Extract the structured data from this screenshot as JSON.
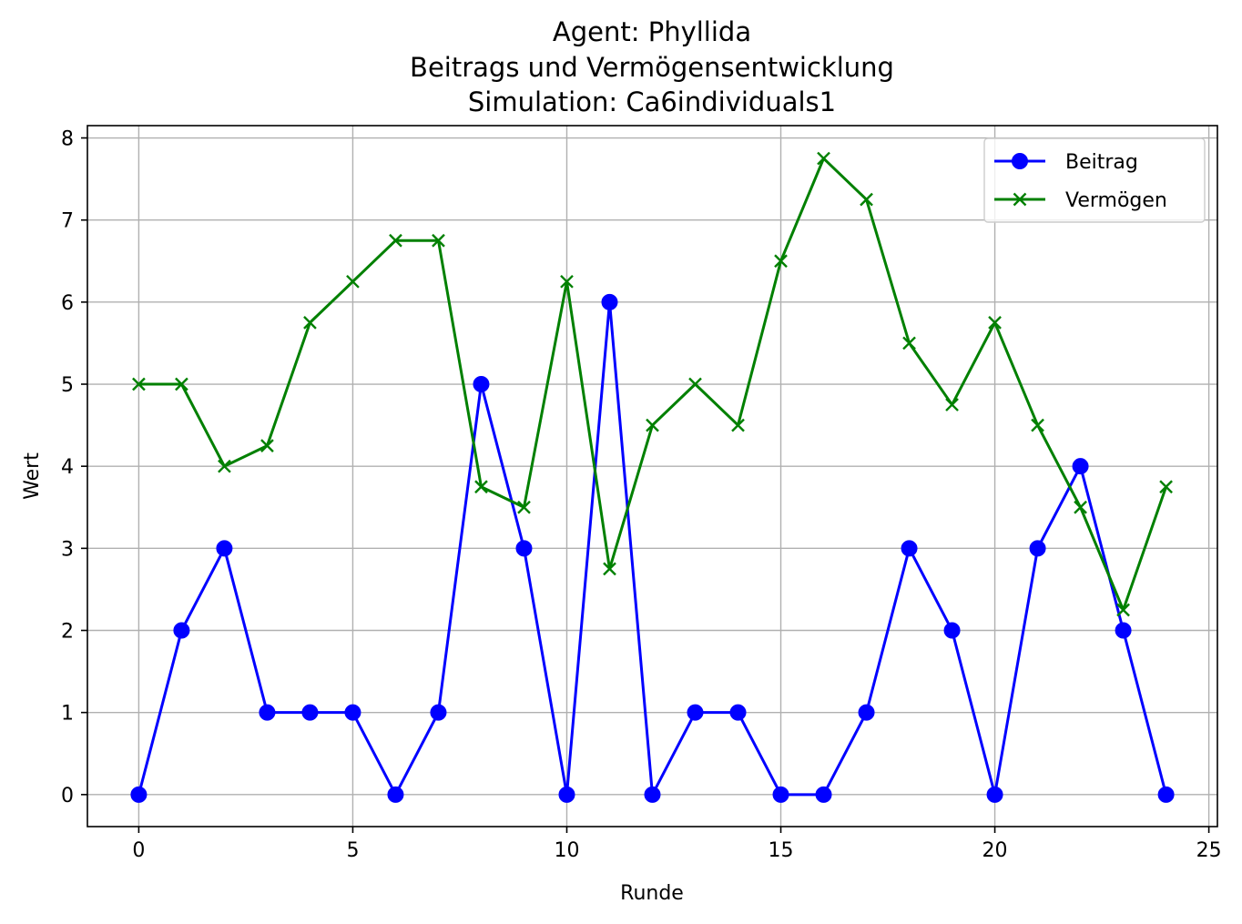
{
  "chart_data": {
    "type": "line",
    "title": [
      "Agent: Phyllida",
      "Beitrags und Vermögensentwicklung",
      "Simulation: Ca6individuals1"
    ],
    "xlabel": "Runde",
    "ylabel": "Wert",
    "xlim": [
      -1.2,
      25.2
    ],
    "ylim": [
      -0.39,
      8.15
    ],
    "xticks": [
      0,
      5,
      10,
      15,
      20,
      25
    ],
    "yticks": [
      0,
      1,
      2,
      3,
      4,
      5,
      6,
      7,
      8
    ],
    "grid": true,
    "legend_position": "top-right",
    "x": [
      0,
      1,
      2,
      3,
      4,
      5,
      6,
      7,
      8,
      9,
      10,
      11,
      12,
      13,
      14,
      15,
      16,
      17,
      18,
      19,
      20,
      21,
      22,
      23,
      24
    ],
    "series": [
      {
        "name": "Beitrag",
        "color": "#0000ff",
        "marker": "circle",
        "values": [
          0,
          2,
          3,
          1,
          1,
          1,
          0,
          1,
          5,
          3,
          0,
          6,
          0,
          1,
          1,
          0,
          0,
          1,
          3,
          2,
          0,
          3,
          4,
          2,
          0
        ]
      },
      {
        "name": "Vermögen",
        "color": "#008000",
        "marker": "x",
        "values": [
          5,
          5,
          4,
          4.25,
          5.75,
          6.25,
          6.75,
          6.75,
          3.75,
          3.5,
          6.25,
          2.75,
          4.5,
          5,
          4.5,
          6.5,
          7.75,
          7.25,
          5.5,
          4.75,
          5.75,
          4.5,
          3.5,
          2.25,
          3.75
        ]
      }
    ]
  }
}
